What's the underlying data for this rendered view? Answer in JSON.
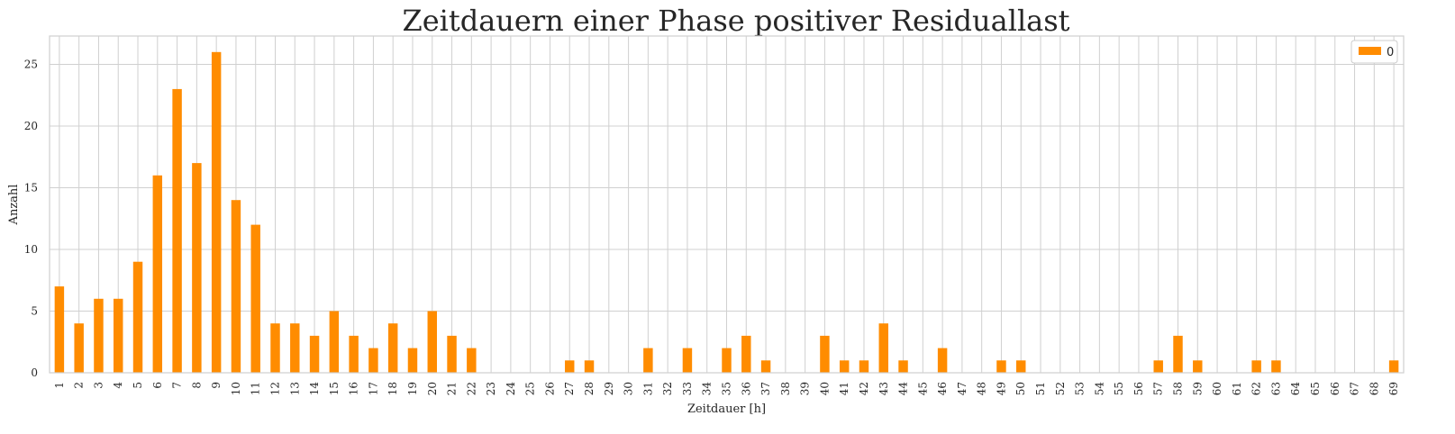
{
  "chart_data": {
    "type": "bar",
    "title": "Zeitdauern einer Phase positiver Residuallast",
    "xlabel": "Zeitdauer [h]",
    "ylabel": "Anzahl",
    "categories": [
      "1",
      "2",
      "3",
      "4",
      "5",
      "6",
      "7",
      "8",
      "9",
      "10",
      "11",
      "12",
      "13",
      "14",
      "15",
      "16",
      "17",
      "18",
      "19",
      "20",
      "21",
      "22",
      "23",
      "24",
      "25",
      "26",
      "27",
      "28",
      "29",
      "30",
      "31",
      "32",
      "33",
      "34",
      "35",
      "36",
      "37",
      "38",
      "39",
      "40",
      "41",
      "42",
      "43",
      "44",
      "45",
      "46",
      "47",
      "48",
      "49",
      "50",
      "51",
      "52",
      "53",
      "54",
      "55",
      "56",
      "57",
      "58",
      "59",
      "60",
      "61",
      "62",
      "63",
      "64",
      "65",
      "66",
      "67",
      "68",
      "69"
    ],
    "series": [
      {
        "name": "0",
        "color": "#ff8c00",
        "values": [
          7,
          4,
          6,
          6,
          9,
          16,
          23,
          17,
          26,
          14,
          12,
          4,
          4,
          3,
          5,
          3,
          2,
          4,
          2,
          5,
          3,
          2,
          0,
          0,
          0,
          0,
          1,
          1,
          0,
          0,
          2,
          0,
          2,
          0,
          2,
          3,
          1,
          0,
          0,
          3,
          1,
          1,
          4,
          1,
          0,
          2,
          0,
          0,
          1,
          1,
          0,
          0,
          0,
          0,
          0,
          0,
          1,
          3,
          1,
          0,
          0,
          1,
          1,
          0,
          0,
          0,
          0,
          0,
          1
        ]
      }
    ],
    "yticks": [
      0,
      5,
      10,
      15,
      20,
      25
    ],
    "ylim": [
      0,
      27.3
    ],
    "grid": true,
    "legend": "top-right"
  }
}
